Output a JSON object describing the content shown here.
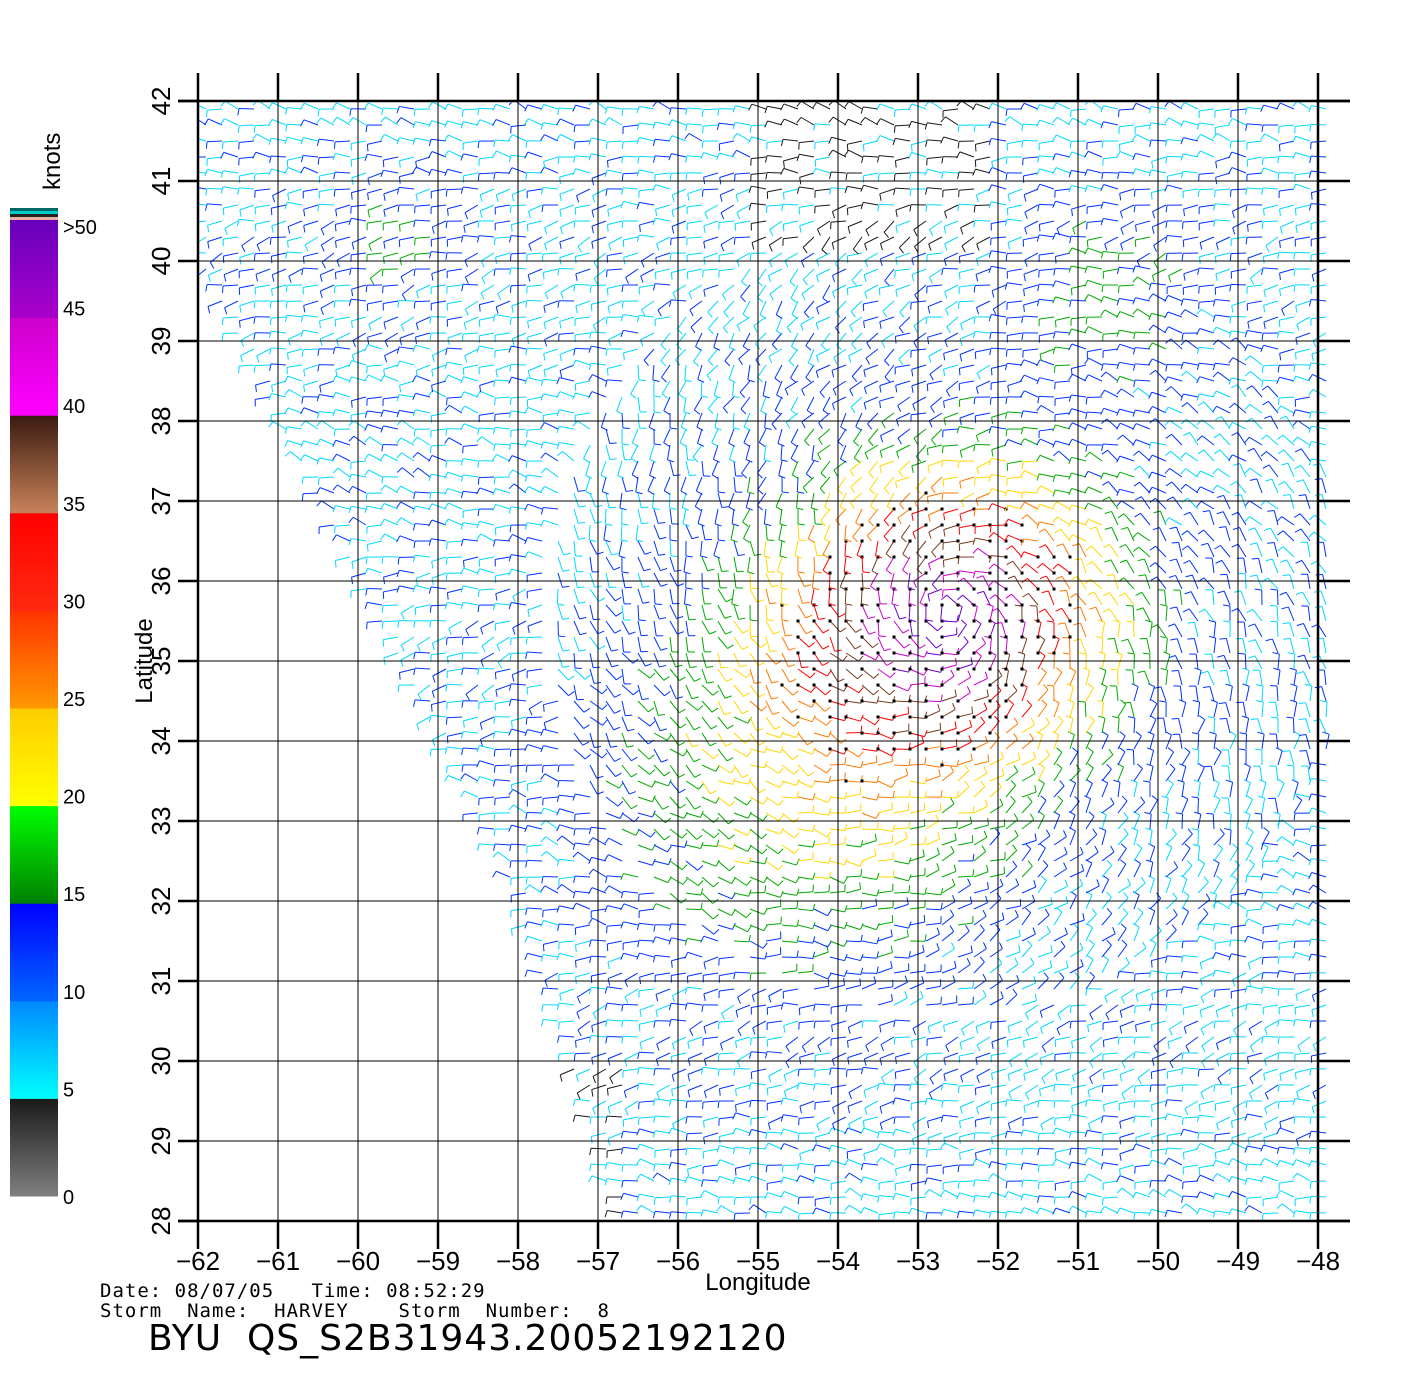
{
  "plot": {
    "xlabel": "Longitude",
    "ylabel": "Latitude",
    "xlim": [
      -62,
      -48
    ],
    "ylim": [
      28,
      42
    ],
    "x_ticks": [
      "−62",
      "−61",
      "−60",
      "−59",
      "−58",
      "−57",
      "−56",
      "−55",
      "−54",
      "−53",
      "−52",
      "−51",
      "−50",
      "−49",
      "−48"
    ],
    "y_ticks": [
      "28",
      "29",
      "30",
      "31",
      "32",
      "33",
      "34",
      "35",
      "36",
      "37",
      "38",
      "39",
      "40",
      "41",
      "42"
    ],
    "grid": true
  },
  "colorbar": {
    "unit_label": "knots",
    "tick_labels": [
      "0",
      "5",
      "10",
      "15",
      "20",
      "25",
      "30",
      "35",
      "40",
      "45",
      ">50"
    ],
    "bands": [
      {
        "from": 0,
        "to": 5,
        "color_bottom": "#7f7f7f",
        "color_top": "#1a1a1a"
      },
      {
        "from": 5,
        "to": 10,
        "color_bottom": "#00ffff",
        "color_top": "#0088ff"
      },
      {
        "from": 10,
        "to": 15,
        "color_bottom": "#0066ff",
        "color_top": "#0000ff"
      },
      {
        "from": 15,
        "to": 20,
        "color_bottom": "#008000",
        "color_top": "#00ff00"
      },
      {
        "from": 20,
        "to": 25,
        "color_bottom": "#ffff00",
        "color_top": "#ffcc00"
      },
      {
        "from": 25,
        "to": 30,
        "color_bottom": "#ff9900",
        "color_top": "#ff3300"
      },
      {
        "from": 30,
        "to": 35,
        "color_bottom": "#ff2a10",
        "color_top": "#ff0000"
      },
      {
        "from": 35,
        "to": 40,
        "color_bottom": "#c8825a",
        "color_top": "#3a1a10"
      },
      {
        "from": 40,
        "to": 45,
        "color_bottom": "#ff00ff",
        "color_top": "#cc00cc"
      },
      {
        "from": 45,
        "to": 50,
        "color_bottom": "#aa00cc",
        "color_top": "#6600bb"
      }
    ],
    "cap_colors": [
      "#e8b0a0",
      "#222222",
      "#00cccc",
      "#006666"
    ]
  },
  "storm": {
    "date_line": "Date: 08/07/05   Time: 08:52:29",
    "name_line": "Storm  Name:  HARVEY    Storm  Number:  8",
    "product_id": "BYU  QS_S2B31943.20052192120"
  },
  "swath_edge": [
    [
      -62.0,
      40.0
    ],
    [
      -60.0,
      36.0
    ],
    [
      -58.0,
      32.0
    ],
    [
      -57.0,
      29.0
    ],
    [
      -56.8,
      28.0
    ]
  ],
  "storm_center": [
    -52.6,
    35.6
  ],
  "speed_levels": [
    {
      "color": "#1a1a1a",
      "speed_range": [
        0,
        5
      ]
    },
    {
      "color": "#00d8ff",
      "speed_range": [
        5,
        10
      ]
    },
    {
      "color": "#0033ff",
      "speed_range": [
        10,
        15
      ]
    },
    {
      "color": "#00aa00",
      "speed_range": [
        15,
        20
      ]
    },
    {
      "color": "#ffd700",
      "speed_range": [
        20,
        25
      ]
    },
    {
      "color": "#ff7a00",
      "speed_range": [
        25,
        30
      ]
    },
    {
      "color": "#ff0000",
      "speed_range": [
        30,
        35
      ]
    },
    {
      "color": "#7a3a20",
      "speed_range": [
        35,
        40
      ]
    },
    {
      "color": "#cc00cc",
      "speed_range": [
        40,
        45
      ]
    },
    {
      "color": "#6a00cc",
      "speed_range": [
        45,
        50
      ]
    }
  ]
}
